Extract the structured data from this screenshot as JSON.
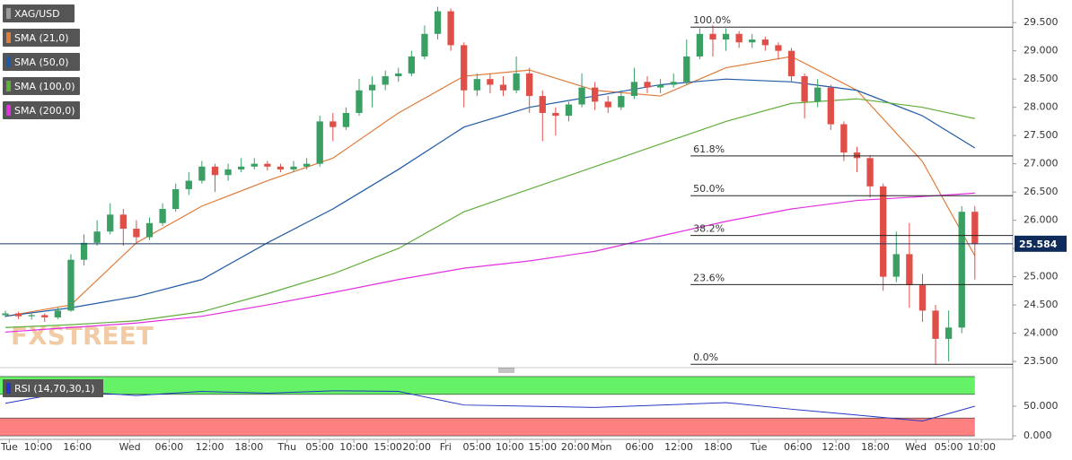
{
  "watermark": "FXSTREET",
  "chart_data": [
    {
      "type": "candlestick",
      "name": "XAG/USD",
      "up_color": "#3a9f63",
      "down_color": "#e04e48",
      "xlim": [
        0,
        76
      ],
      "ylim": [
        23.39,
        29.9
      ],
      "yticks": [
        {
          "value": 23.5,
          "label": "23.500"
        },
        {
          "value": 24,
          "label": "24.000"
        },
        {
          "value": 24.5,
          "label": "24.500"
        },
        {
          "value": 25,
          "label": "25.000"
        },
        {
          "value": 25.5,
          "label": "25.500"
        },
        {
          "value": 26,
          "label": "26.000"
        },
        {
          "value": 26.5,
          "label": "26.500"
        },
        {
          "value": 27,
          "label": "27.000"
        },
        {
          "value": 27.5,
          "label": "27.500"
        },
        {
          "value": 28,
          "label": "28.000"
        },
        {
          "value": 28.5,
          "label": "28.500"
        },
        {
          "value": 29,
          "label": "29.000"
        },
        {
          "value": 29.5,
          "label": "29.500"
        }
      ],
      "open": [
        24.32,
        24.35,
        24.3,
        24.32,
        24.28,
        24.4,
        25.3,
        25.6,
        25.8,
        26.1,
        25.85,
        25.7,
        25.95,
        26.2,
        26.55,
        26.7,
        26.95,
        26.8,
        26.9,
        26.95,
        27.0,
        26.95,
        26.9,
        26.95,
        27.0,
        27.75,
        27.65,
        27.9,
        28.3,
        28.4,
        28.55,
        28.6,
        28.9,
        29.3,
        29.7,
        29.1,
        28.3,
        28.5,
        28.4,
        28.3,
        28.6,
        28.2,
        27.9,
        27.85,
        28.05,
        28.35,
        28.1,
        28.0,
        28.2,
        28.45,
        28.35,
        28.4,
        28.45,
        28.9,
        29.3,
        29.2,
        29.3,
        29.15,
        29.2,
        29.1,
        29.0,
        28.55,
        28.1,
        28.35,
        27.7,
        27.2,
        27.1,
        26.6,
        25.0,
        25.4,
        24.85,
        24.4,
        23.9,
        24.1,
        26.15
      ],
      "high": [
        24.4,
        24.38,
        24.36,
        24.35,
        24.45,
        25.4,
        25.75,
        26.0,
        26.3,
        26.2,
        26.0,
        26.05,
        26.3,
        26.65,
        26.85,
        27.05,
        27.0,
        27.0,
        27.1,
        27.1,
        27.05,
        27.0,
        27.05,
        27.1,
        27.85,
        27.9,
        28.0,
        28.5,
        28.55,
        28.65,
        28.7,
        29.0,
        29.45,
        29.78,
        29.75,
        29.15,
        28.6,
        28.6,
        28.55,
        28.9,
        28.7,
        28.3,
        28.0,
        28.1,
        28.6,
        28.45,
        28.2,
        28.3,
        28.7,
        28.55,
        28.5,
        28.6,
        29.2,
        29.4,
        29.45,
        29.4,
        29.35,
        29.3,
        29.25,
        29.15,
        29.05,
        28.6,
        28.5,
        28.4,
        27.75,
        27.3,
        27.15,
        26.65,
        25.8,
        25.95,
        25.05,
        24.5,
        24.4,
        26.25,
        26.25
      ],
      "low": [
        24.28,
        24.25,
        24.24,
        24.2,
        24.25,
        24.38,
        25.2,
        25.55,
        25.75,
        25.55,
        25.6,
        25.65,
        25.9,
        26.15,
        26.45,
        26.65,
        26.5,
        26.7,
        26.85,
        26.9,
        26.88,
        26.85,
        26.85,
        26.9,
        26.95,
        27.4,
        27.6,
        27.85,
        28.0,
        28.3,
        28.45,
        28.55,
        28.85,
        29.2,
        29.0,
        28.0,
        28.2,
        28.25,
        28.2,
        28.25,
        27.9,
        27.4,
        27.5,
        27.75,
        28.0,
        27.95,
        27.9,
        27.95,
        28.15,
        28.25,
        28.25,
        28.35,
        28.4,
        28.85,
        28.9,
        29.0,
        29.05,
        29.05,
        29.0,
        28.85,
        28.45,
        27.8,
        28.0,
        27.6,
        27.05,
        26.85,
        26.4,
        24.75,
        24.9,
        24.45,
        24.2,
        23.45,
        23.5,
        24.0,
        24.95
      ],
      "close": [
        24.35,
        24.3,
        24.32,
        24.28,
        24.4,
        25.3,
        25.6,
        25.8,
        26.1,
        25.85,
        25.7,
        25.95,
        26.2,
        26.55,
        26.7,
        26.95,
        26.8,
        26.9,
        26.95,
        27.0,
        26.95,
        26.9,
        26.95,
        27.0,
        27.75,
        27.65,
        27.9,
        28.3,
        28.4,
        28.55,
        28.6,
        28.9,
        29.3,
        29.7,
        29.1,
        28.3,
        28.5,
        28.4,
        28.3,
        28.6,
        28.2,
        27.9,
        27.85,
        28.05,
        28.35,
        28.1,
        28.0,
        28.2,
        28.45,
        28.35,
        28.4,
        28.45,
        28.9,
        29.3,
        29.2,
        29.3,
        29.15,
        29.2,
        29.1,
        29.0,
        28.55,
        28.1,
        28.35,
        27.7,
        27.2,
        27.1,
        26.6,
        25.0,
        25.4,
        24.85,
        24.4,
        23.9,
        24.1,
        26.15,
        25.584
      ],
      "last_price": 25.584,
      "fib_from": 52.3,
      "fib_levels": [
        {
          "label": "100.0%",
          "value": 29.42
        },
        {
          "label": "61.8%",
          "value": 27.14
        },
        {
          "label": "50.0%",
          "value": 26.435
        },
        {
          "label": "38.2%",
          "value": 25.73
        },
        {
          "label": "23.6%",
          "value": 24.86
        },
        {
          "label": "0.0%",
          "value": 23.45
        }
      ],
      "overlays": [
        {
          "name": "SMA (21,0)",
          "color": "#e07b39",
          "x": [
            0,
            5,
            10,
            15,
            20,
            25,
            30,
            35,
            40,
            45,
            50,
            55,
            60,
            65,
            70,
            74
          ],
          "values": [
            24.3,
            24.5,
            25.6,
            26.25,
            26.7,
            27.1,
            27.9,
            28.55,
            28.66,
            28.3,
            28.2,
            28.7,
            28.9,
            28.3,
            27.04,
            25.37
          ]
        },
        {
          "name": "SMA (50,0)",
          "color": "#1f5aa6",
          "x": [
            0,
            5,
            10,
            15,
            20,
            25,
            30,
            35,
            40,
            45,
            50,
            55,
            60,
            65,
            70,
            74
          ],
          "values": [
            24.3,
            24.45,
            24.65,
            24.95,
            25.6,
            26.2,
            26.9,
            27.65,
            28.0,
            28.2,
            28.4,
            28.5,
            28.45,
            28.3,
            27.85,
            27.28
          ]
        },
        {
          "name": "SMA (100,0)",
          "color": "#5fae3a",
          "x": [
            0,
            5,
            10,
            15,
            20,
            25,
            30,
            35,
            40,
            45,
            50,
            55,
            60,
            65,
            70,
            74
          ],
          "values": [
            24.1,
            24.15,
            24.22,
            24.38,
            24.7,
            25.05,
            25.5,
            26.15,
            26.55,
            26.95,
            27.35,
            27.75,
            28.07,
            28.15,
            28.0,
            27.8
          ]
        },
        {
          "name": "SMA (200,0)",
          "color": "#e22fe0",
          "x": [
            0,
            5,
            10,
            15,
            20,
            25,
            30,
            35,
            40,
            45,
            50,
            55,
            60,
            65,
            70,
            74
          ],
          "values": [
            24.02,
            24.1,
            24.18,
            24.3,
            24.5,
            24.72,
            24.95,
            25.15,
            25.28,
            25.45,
            25.72,
            25.98,
            26.2,
            26.35,
            26.42,
            26.48
          ]
        }
      ]
    },
    {
      "type": "line",
      "xlim": [
        0,
        76
      ],
      "ylim": [
        -6,
        103
      ],
      "yticks": [
        {
          "value": 0,
          "label": "0.000"
        },
        {
          "value": 50,
          "label": "50.000"
        }
      ],
      "xticks": [
        {
          "value": 0.3,
          "label": "Tue"
        },
        {
          "value": 2.5,
          "label": "10:00"
        },
        {
          "value": 5.5,
          "label": "16:00"
        },
        {
          "value": 9.5,
          "label": "Wed"
        },
        {
          "value": 12.5,
          "label": "06:00"
        },
        {
          "value": 15.6,
          "label": "12:00"
        },
        {
          "value": 18.6,
          "label": "18:00"
        },
        {
          "value": 21.5,
          "label": "Thu"
        },
        {
          "value": 24,
          "label": "05:00"
        },
        {
          "value": 26.6,
          "label": "10:00"
        },
        {
          "value": 29.2,
          "label": "15:00"
        },
        {
          "value": 31.4,
          "label": "20:00"
        },
        {
          "value": 33.6,
          "label": "Fri"
        },
        {
          "value": 36,
          "label": "05:00"
        },
        {
          "value": 38.5,
          "label": "10:00"
        },
        {
          "value": 41,
          "label": "15:00"
        },
        {
          "value": 43.5,
          "label": "20:00"
        },
        {
          "value": 45.5,
          "label": "Mon"
        },
        {
          "value": 48.4,
          "label": "06:00"
        },
        {
          "value": 51.4,
          "label": "12:00"
        },
        {
          "value": 54.4,
          "label": "18:00"
        },
        {
          "value": 57.5,
          "label": "Tue"
        },
        {
          "value": 60.5,
          "label": "06:00"
        },
        {
          "value": 63.4,
          "label": "12:00"
        },
        {
          "value": 66.4,
          "label": "18:00"
        },
        {
          "value": 69.5,
          "label": "Wed"
        },
        {
          "value": 72,
          "label": "05:00"
        },
        {
          "value": 74.5,
          "label": "10:00"
        }
      ],
      "bands": [
        {
          "range": [
            70,
            100
          ],
          "color": "#66f266"
        },
        {
          "range": [
            0,
            30
          ],
          "color": "#ff8080"
        }
      ],
      "series": [
        {
          "name": "RSI (14,70,30,1)",
          "color": "#2437c4",
          "x": [
            0,
            5,
            10,
            15,
            20,
            25,
            30,
            35,
            40,
            45,
            50,
            55,
            60,
            65,
            70,
            74
          ],
          "values": [
            55,
            75,
            68,
            75,
            72,
            76,
            75,
            52,
            50,
            48,
            52,
            56,
            45,
            35,
            25,
            50
          ]
        }
      ]
    }
  ]
}
